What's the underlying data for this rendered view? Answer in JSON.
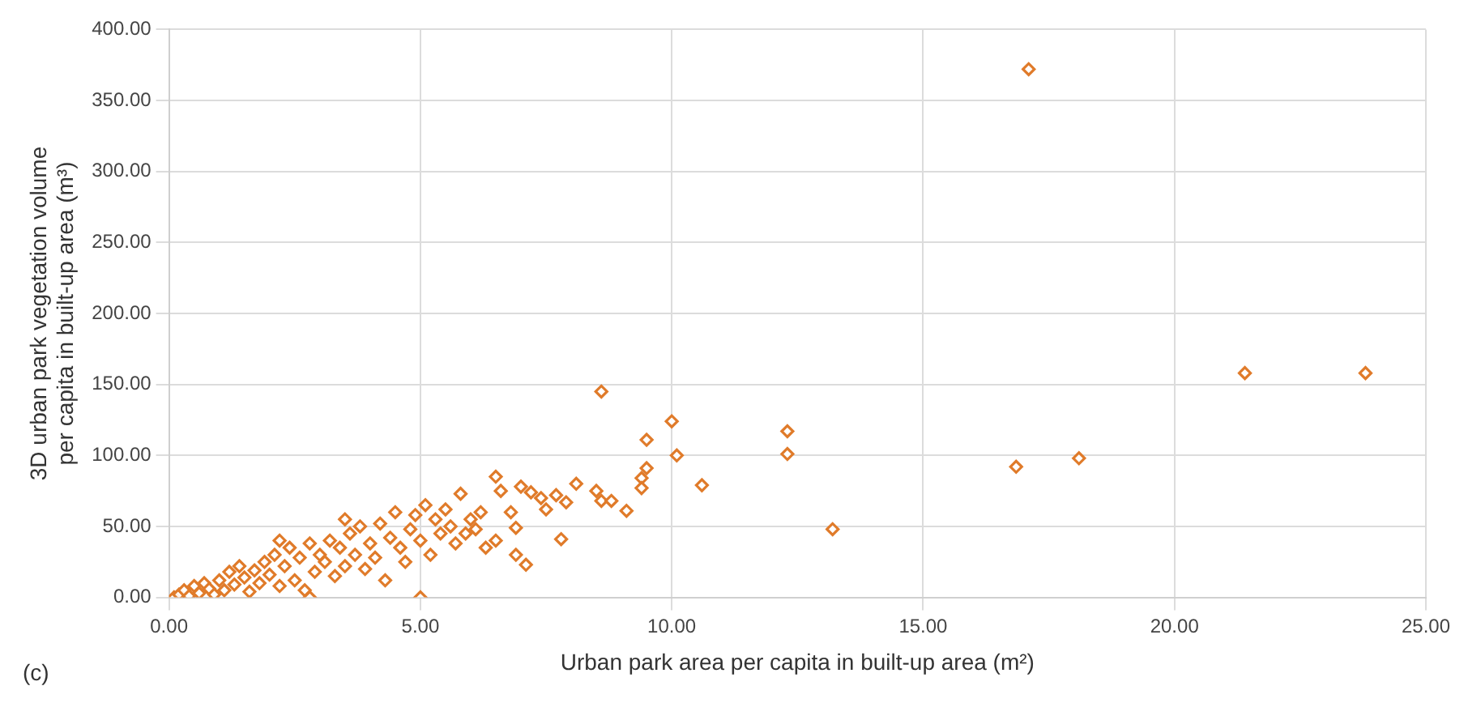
{
  "chart_data": {
    "type": "scatter",
    "xlabel": "Urban park area per capita in built-up area (m²)",
    "ylabel": "3D urban park vegetation volume per capita in built-up area (m³)",
    "annotations": [
      "(c)"
    ],
    "series": [
      {
        "color": "#e07b2a",
        "x": [
          0.1,
          0.2,
          0.3,
          0.4,
          0.5,
          0.6,
          0.7,
          0.8,
          0.9,
          1.0,
          1.1,
          1.2,
          1.3,
          1.4,
          1.5,
          1.6,
          1.7,
          1.8,
          1.9,
          2.0,
          2.1,
          2.2,
          2.2,
          2.3,
          2.4,
          2.5,
          2.6,
          2.7,
          2.8,
          2.8,
          2.9,
          3.0,
          3.1,
          3.2,
          3.3,
          3.4,
          3.5,
          3.5,
          3.6,
          3.7,
          3.8,
          3.9,
          4.0,
          4.1,
          4.2,
          4.3,
          4.4,
          4.5,
          4.6,
          4.7,
          4.8,
          4.9,
          5.0,
          5.0,
          5.1,
          5.2,
          5.3,
          5.4,
          5.5,
          5.6,
          5.7,
          5.8,
          5.9,
          6.0,
          6.1,
          6.2,
          6.3,
          6.5,
          6.5,
          6.6,
          6.8,
          6.9,
          6.9,
          7.0,
          7.1,
          7.2,
          7.4,
          7.5,
          7.7,
          7.8,
          7.9,
          8.1,
          8.5,
          8.6,
          8.6,
          8.8,
          9.1,
          9.4,
          9.4,
          9.5,
          9.5,
          10.0,
          10.1,
          10.6,
          12.3,
          12.3,
          13.2,
          16.85,
          17.1,
          18.1,
          21.4,
          23.8
        ],
        "values": [
          0,
          2,
          5,
          1,
          8,
          3,
          10,
          6,
          2,
          12,
          5,
          18,
          9,
          22,
          14,
          4,
          19,
          10,
          25,
          16,
          30,
          40,
          8,
          22,
          35,
          12,
          28,
          5,
          0,
          38,
          18,
          30,
          25,
          40,
          15,
          35,
          55,
          22,
          45,
          30,
          50,
          20,
          38,
          28,
          52,
          12,
          42,
          60,
          35,
          25,
          48,
          58,
          0,
          40,
          65,
          30,
          55,
          45,
          62,
          50,
          38,
          73,
          45,
          55,
          48,
          60,
          35,
          85,
          40,
          75,
          60,
          49,
          30,
          78,
          23,
          74,
          70,
          62,
          72,
          41,
          67,
          80,
          75,
          145,
          68,
          68,
          61,
          84,
          77,
          111,
          91,
          124,
          100,
          79,
          117,
          101,
          48,
          92,
          372,
          98,
          158,
          158
        ]
      }
    ],
    "xlim": [
      0,
      25
    ],
    "xticks": [
      {
        "value": 0,
        "label": "0.00"
      },
      {
        "value": 5,
        "label": "5.00"
      },
      {
        "value": 10,
        "label": "10.00"
      },
      {
        "value": 15,
        "label": "15.00"
      },
      {
        "value": 20,
        "label": "20.00"
      },
      {
        "value": 25,
        "label": "25.00"
      }
    ],
    "ylim": [
      0,
      400
    ],
    "yticks": [
      {
        "value": 0,
        "label": "0.00"
      },
      {
        "value": 50,
        "label": "50.00"
      },
      {
        "value": 100,
        "label": "100.00"
      },
      {
        "value": 150,
        "label": "150.00"
      },
      {
        "value": 200,
        "label": "200.00"
      },
      {
        "value": 250,
        "label": "250.00"
      },
      {
        "value": 300,
        "label": "300.00"
      },
      {
        "value": 350,
        "label": "350.00"
      },
      {
        "value": 400,
        "label": "400.00"
      }
    ],
    "grid": true,
    "marker": "diamond",
    "legend": false
  }
}
